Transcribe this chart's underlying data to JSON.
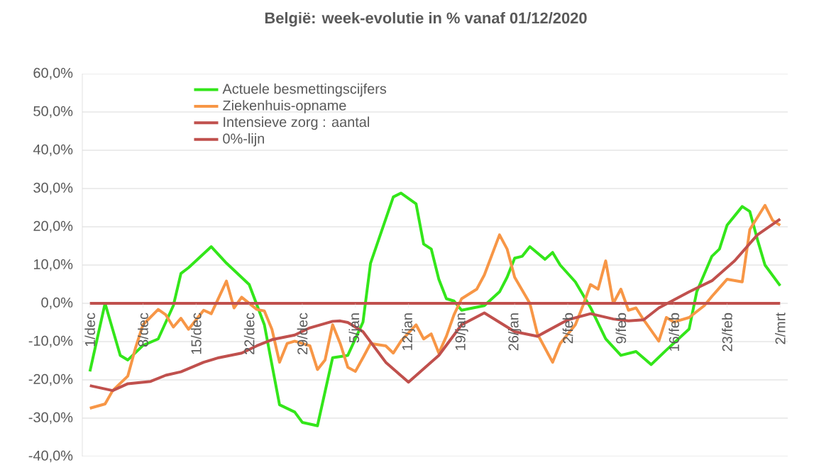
{
  "chart_data": {
    "type": "line",
    "title": "België: week-evolutie in %  vanaf 01/12/2020",
    "xlim": [
      "2020-11-30",
      "2021-03-03"
    ],
    "xticks": [
      {
        "value": "2020-12-01",
        "label": "1/dec"
      },
      {
        "value": "2020-12-08",
        "label": "8/dec"
      },
      {
        "value": "2020-12-15",
        "label": "15/dec"
      },
      {
        "value": "2020-12-22",
        "label": "22/dec"
      },
      {
        "value": "2020-12-29",
        "label": "29/dec"
      },
      {
        "value": "2021-01-05",
        "label": "5/jan"
      },
      {
        "value": "2021-01-12",
        "label": "12/jan"
      },
      {
        "value": "2021-01-19",
        "label": "19/jan"
      },
      {
        "value": "2021-01-26",
        "label": "26/jan"
      },
      {
        "value": "2021-02-02",
        "label": "2/feb"
      },
      {
        "value": "2021-02-09",
        "label": "9/feb"
      },
      {
        "value": "2021-02-16",
        "label": "16/feb"
      },
      {
        "value": "2021-02-23",
        "label": "23/feb"
      },
      {
        "value": "2021-03-02",
        "label": "2/mrt"
      }
    ],
    "ylim": [
      -40,
      60
    ],
    "yticks": [
      {
        "value": -40,
        "label": "-40,0%"
      },
      {
        "value": -30,
        "label": "-30,0%"
      },
      {
        "value": -20,
        "label": "-20,0%"
      },
      {
        "value": -10,
        "label": "-10,0%"
      },
      {
        "value": 0,
        "label": "0,0%"
      },
      {
        "value": 10,
        "label": "10,0%"
      },
      {
        "value": 20,
        "label": "20,0%"
      },
      {
        "value": 30,
        "label": "30,0%"
      },
      {
        "value": 40,
        "label": "40,0%"
      },
      {
        "value": 50,
        "label": "50,0%"
      },
      {
        "value": 60,
        "label": "60,0%"
      }
    ],
    "grid": "y",
    "legend": "top left",
    "marker": "none",
    "series": [
      {
        "name": "Actuele besmettingscijfers",
        "color": "#33e61a",
        "x": [
          "2020-12-01",
          "2020-12-03",
          "2020-12-05",
          "2020-12-06",
          "2020-12-08",
          "2020-12-10",
          "2020-12-12",
          "2020-12-13",
          "2020-12-14",
          "2020-12-17",
          "2020-12-19",
          "2020-12-22",
          "2020-12-24",
          "2020-12-26",
          "2020-12-28",
          "2020-12-29",
          "2020-12-31",
          "2021-01-02",
          "2021-01-04",
          "2021-01-06",
          "2021-01-07",
          "2021-01-10",
          "2021-01-11",
          "2021-01-13",
          "2021-01-14",
          "2021-01-15",
          "2021-01-16",
          "2021-01-17",
          "2021-01-18",
          "2021-01-19",
          "2021-01-22",
          "2021-01-24",
          "2021-01-25",
          "2021-01-26",
          "2021-01-27",
          "2021-01-28",
          "2021-01-30",
          "2021-01-31",
          "2021-02-01",
          "2021-02-03",
          "2021-02-05",
          "2021-02-07",
          "2021-02-09",
          "2021-02-11",
          "2021-02-13",
          "2021-02-15",
          "2021-02-18",
          "2021-02-19",
          "2021-02-21",
          "2021-02-22",
          "2021-02-23",
          "2021-02-25",
          "2021-02-26",
          "2021-02-27",
          "2021-02-28",
          "2021-03-02"
        ],
        "values": [
          -17.8,
          0,
          -13.6,
          -14.8,
          -11,
          -9.3,
          -0.6,
          7.8,
          9.3,
          14.8,
          10.5,
          4.9,
          -5.6,
          -26.5,
          -28.4,
          -31.1,
          -32,
          -14.2,
          -13.6,
          -4.9,
          10.5,
          27.8,
          28.8,
          26,
          15.5,
          14.2,
          6.3,
          1.2,
          0.6,
          -1.8,
          -0.6,
          3,
          6.8,
          11.8,
          12.3,
          14.8,
          11.5,
          13.3,
          10,
          5.6,
          -1.1,
          -9.3,
          -13.6,
          -12.6,
          -16,
          -12.2,
          -6.7,
          3,
          12.3,
          14.2,
          20.4,
          25.3,
          24,
          16.7,
          10,
          4.6
        ]
      },
      {
        "name": "Ziekenhuis-opname",
        "color": "#f79646",
        "x": [
          "2020-12-01",
          "2020-12-03",
          "2020-12-04",
          "2020-12-06",
          "2020-12-07",
          "2020-12-08",
          "2020-12-10",
          "2020-12-11",
          "2020-12-12",
          "2020-12-13",
          "2020-12-14",
          "2020-12-16",
          "2020-12-17",
          "2020-12-19",
          "2020-12-20",
          "2020-12-21",
          "2020-12-22",
          "2020-12-23",
          "2020-12-24",
          "2020-12-25",
          "2020-12-26",
          "2020-12-27",
          "2020-12-28",
          "2020-12-30",
          "2020-12-31",
          "2021-01-01",
          "2021-01-02",
          "2021-01-03",
          "2021-01-04",
          "2021-01-05",
          "2021-01-06",
          "2021-01-07",
          "2021-01-09",
          "2021-01-10",
          "2021-01-11",
          "2021-01-13",
          "2021-01-14",
          "2021-01-15",
          "2021-01-16",
          "2021-01-17",
          "2021-01-18",
          "2021-01-19",
          "2021-01-21",
          "2021-01-22",
          "2021-01-24",
          "2021-01-25",
          "2021-01-26",
          "2021-01-28",
          "2021-01-29",
          "2021-01-31",
          "2021-02-01",
          "2021-02-03",
          "2021-02-04",
          "2021-02-05",
          "2021-02-06",
          "2021-02-07",
          "2021-02-08",
          "2021-02-09",
          "2021-02-10",
          "2021-02-11",
          "2021-02-12",
          "2021-02-14",
          "2021-02-15",
          "2021-02-16",
          "2021-02-18",
          "2021-02-20",
          "2021-02-21",
          "2021-02-23",
          "2021-02-25",
          "2021-02-26",
          "2021-02-28",
          "2021-03-01",
          "2021-03-02"
        ],
        "values": [
          -27.4,
          -26.3,
          -22.8,
          -19,
          -11.7,
          -5.6,
          -1.6,
          -3,
          -6.2,
          -3.9,
          -6.8,
          -1.8,
          -2.7,
          5.8,
          -1.2,
          1.6,
          0,
          -1.6,
          -2,
          -6.8,
          -15.4,
          -10.5,
          -9.9,
          -11.1,
          -17.3,
          -14.8,
          -5.6,
          -10.5,
          -16.7,
          -17.8,
          -14.2,
          -10.5,
          -11.1,
          -13,
          -9.9,
          -5.6,
          -9.3,
          -8,
          -13,
          -8.6,
          -3,
          1.2,
          3.7,
          7.4,
          17.9,
          14.2,
          6.8,
          0,
          -8,
          -15.4,
          -10.5,
          -5.6,
          -0.6,
          4.9,
          3.7,
          11.1,
          0,
          3.7,
          -1.8,
          -1.2,
          -4.3,
          -9.9,
          -3.7,
          -4.9,
          -3.7,
          -0.6,
          1.8,
          6.3,
          5.6,
          19.3,
          25.6,
          21.7,
          20.4
        ]
      },
      {
        "name": "Intensieve zorg : aantal",
        "color": "#c0504d",
        "x": [
          "2020-12-01",
          "2020-12-04",
          "2020-12-06",
          "2020-12-09",
          "2020-12-11",
          "2020-12-13",
          "2020-12-16",
          "2020-12-18",
          "2020-12-21",
          "2020-12-23",
          "2020-12-25",
          "2020-12-28",
          "2020-12-30",
          "2021-01-02",
          "2021-01-03",
          "2021-01-04",
          "2021-01-06",
          "2021-01-09",
          "2021-01-12",
          "2021-01-16",
          "2021-01-19",
          "2021-01-22",
          "2021-01-26",
          "2021-01-29",
          "2021-02-02",
          "2021-02-05",
          "2021-02-08",
          "2021-02-10",
          "2021-02-12",
          "2021-02-14",
          "2021-02-18",
          "2021-02-21",
          "2021-02-24",
          "2021-02-27",
          "2021-03-02"
        ],
        "values": [
          -21.5,
          -22.8,
          -21,
          -20.4,
          -18.8,
          -17.9,
          -15.4,
          -14.2,
          -13,
          -11.1,
          -9.5,
          -8.3,
          -6.4,
          -4.7,
          -4.6,
          -5,
          -7.4,
          -15.4,
          -20.6,
          -13.6,
          -5.6,
          -2.5,
          -7.4,
          -8.6,
          -4.3,
          -2.7,
          -4.1,
          -4.6,
          -4.3,
          -1.2,
          3,
          5.9,
          11.1,
          17.9,
          22
        ]
      },
      {
        "name": "0%-lijn",
        "color": "#c0504d",
        "x": [
          "2020-12-01",
          "2021-03-02"
        ],
        "values": [
          0,
          0
        ]
      }
    ]
  }
}
